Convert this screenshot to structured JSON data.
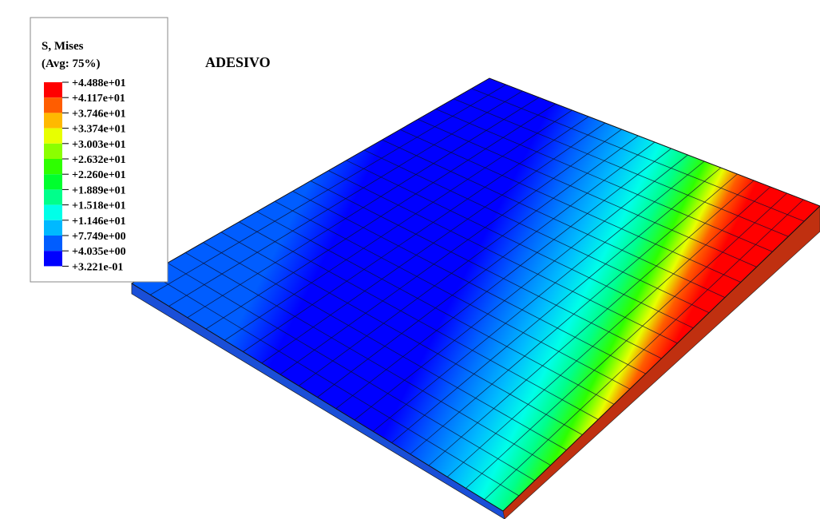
{
  "legend": {
    "title": "S, Mises",
    "subtitle": "(Avg: 75%)",
    "levels": [
      "+4.488e+01",
      "+4.117e+01",
      "+3.746e+01",
      "+3.374e+01",
      "+3.003e+01",
      "+2.632e+01",
      "+2.260e+01",
      "+1.889e+01",
      "+1.518e+01",
      "+1.146e+01",
      "+7.749e+00",
      "+4.035e+00",
      "+3.221e-01"
    ],
    "colors": [
      "#ff0000",
      "#ff5d00",
      "#ffb900",
      "#e8ff00",
      "#8bff00",
      "#2eff00",
      "#00ff2e",
      "#00ff8b",
      "#00ffe8",
      "#00b9ff",
      "#005dff",
      "#0000ff"
    ]
  },
  "label": "ADESIVO"
}
